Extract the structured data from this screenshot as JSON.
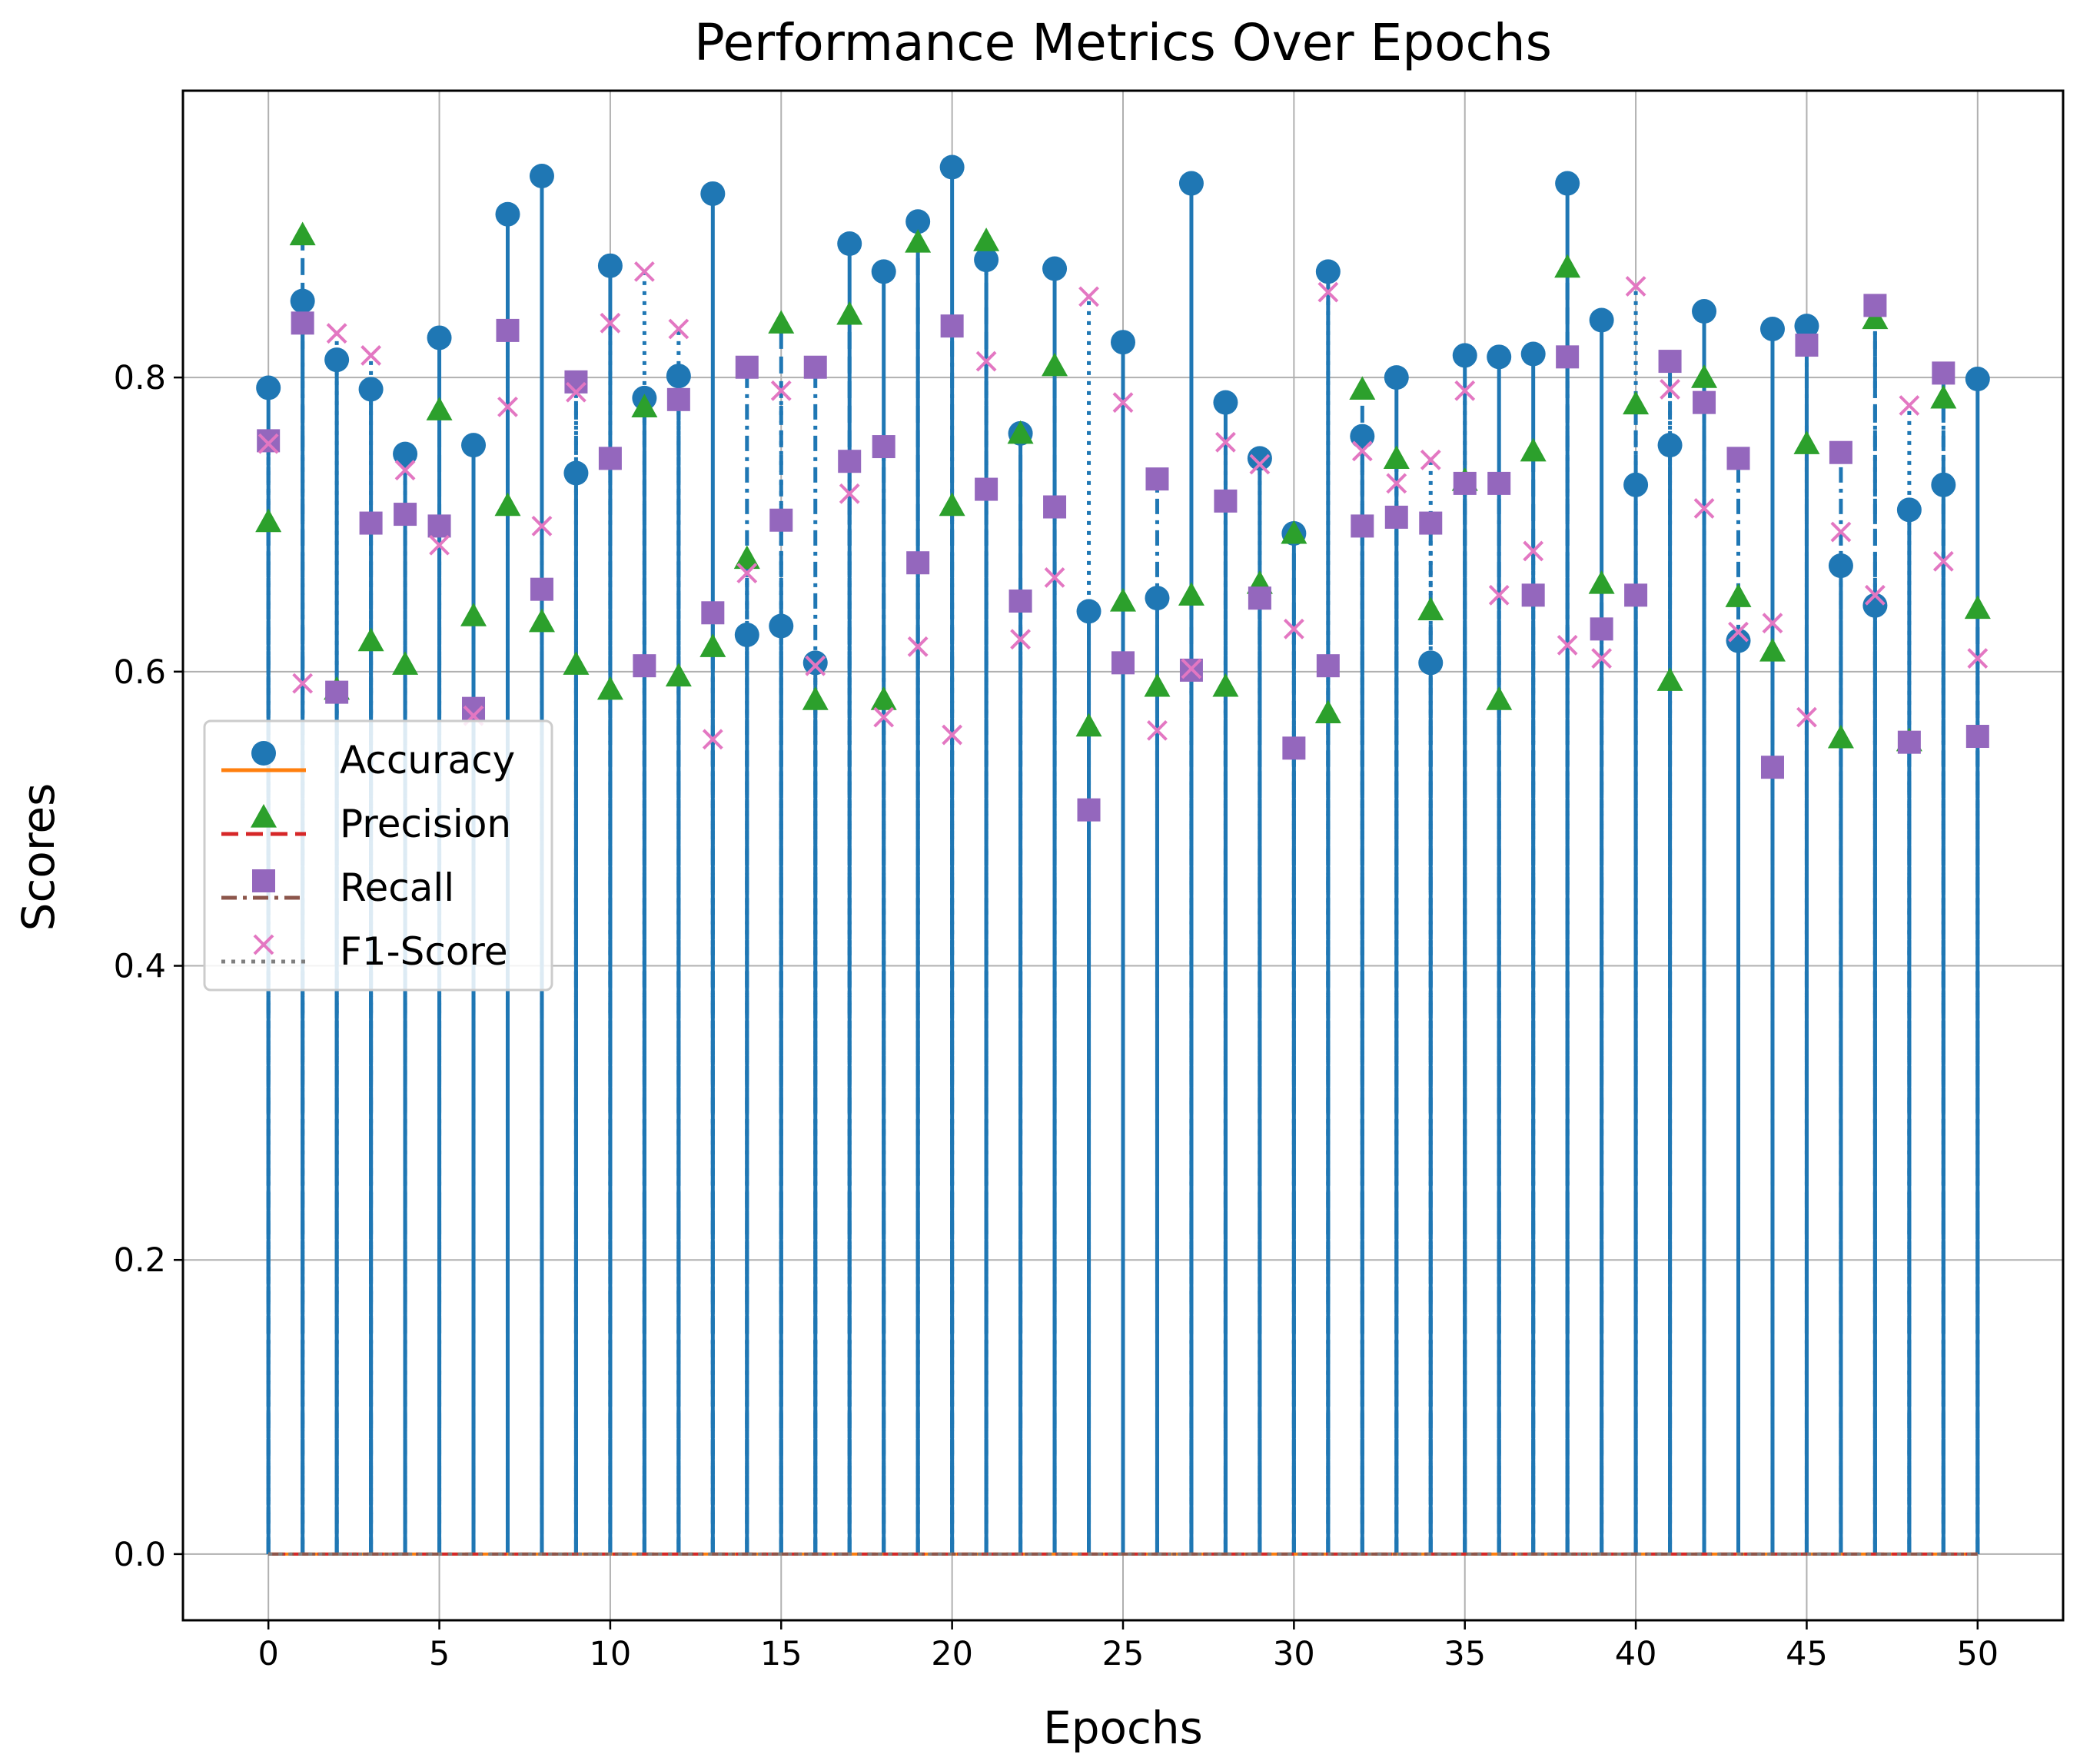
{
  "chart_data": {
    "type": "stem",
    "title": "Performance Metrics Over Epochs",
    "xlabel": "Epochs",
    "ylabel": "Scores",
    "xlim": [
      -2.5,
      52.5
    ],
    "ylim": [
      -0.045,
      0.995
    ],
    "xticks": [
      0,
      5,
      10,
      15,
      20,
      25,
      30,
      35,
      40,
      45,
      50
    ],
    "xtick_labels": [
      "0",
      "5",
      "10",
      "15",
      "20",
      "25",
      "30",
      "35",
      "40",
      "45",
      "50"
    ],
    "yticks": [
      0.0,
      0.2,
      0.4,
      0.6,
      0.8
    ],
    "ytick_labels": [
      "0.0",
      "0.2",
      "0.4",
      "0.6",
      "0.8"
    ],
    "grid": true,
    "legend_position": "center-left",
    "x": [
      0,
      1,
      2,
      3,
      4,
      5,
      6,
      7,
      8,
      9,
      10,
      11,
      12,
      13,
      14,
      15,
      16,
      17,
      18,
      19,
      20,
      21,
      22,
      23,
      24,
      25,
      26,
      27,
      28,
      29,
      30,
      31,
      32,
      33,
      34,
      35,
      36,
      37,
      38,
      39,
      40,
      41,
      42,
      43,
      44,
      45,
      46,
      47,
      48,
      49,
      50
    ],
    "series": [
      {
        "name": "Accuracy",
        "marker": "circle",
        "stem_style": "solid",
        "baseline_style": "solid",
        "marker_color": "#1f77b4",
        "stem_color": "#1f77b4",
        "baseline_color": "#ff7f0e",
        "values": [
          0.793,
          0.852,
          0.812,
          0.792,
          0.748,
          0.827,
          0.754,
          0.911,
          0.937,
          0.735,
          0.876,
          0.786,
          0.801,
          0.925,
          0.625,
          0.631,
          0.606,
          0.891,
          0.872,
          0.906,
          0.943,
          0.88,
          0.762,
          0.874,
          0.641,
          0.824,
          0.65,
          0.932,
          0.783,
          0.745,
          0.694,
          0.872,
          0.76,
          0.8,
          0.606,
          0.815,
          0.814,
          0.816,
          0.932,
          0.839,
          0.727,
          0.754,
          0.845,
          0.621,
          0.833,
          0.835,
          0.672,
          0.645,
          0.71,
          0.727,
          0.799
        ]
      },
      {
        "name": "Precision",
        "marker": "triangle",
        "stem_style": "dashed",
        "baseline_style": "dashed",
        "marker_color": "#2ca02c",
        "stem_color": "#1f77b4",
        "baseline_color": "#d62728",
        "values": [
          0.702,
          0.897,
          0.588,
          0.621,
          0.605,
          0.778,
          0.638,
          0.713,
          0.634,
          0.605,
          0.588,
          0.78,
          0.597,
          0.617,
          0.677,
          0.837,
          0.581,
          0.843,
          0.581,
          0.892,
          0.713,
          0.893,
          0.762,
          0.808,
          0.563,
          0.648,
          0.59,
          0.652,
          0.59,
          0.66,
          0.694,
          0.572,
          0.792,
          0.745,
          0.642,
          0.73,
          0.581,
          0.75,
          0.875,
          0.66,
          0.782,
          0.594,
          0.8,
          0.651,
          0.614,
          0.755,
          0.555,
          0.84,
          0.553,
          0.786,
          0.643
        ]
      },
      {
        "name": "Recall",
        "marker": "square",
        "stem_style": "dashdot",
        "baseline_style": "dashdot",
        "marker_color": "#9467bd",
        "stem_color": "#1f77b4",
        "baseline_color": "#8c564b",
        "values": [
          0.757,
          0.837,
          0.586,
          0.701,
          0.707,
          0.699,
          0.575,
          0.832,
          0.656,
          0.797,
          0.745,
          0.604,
          0.785,
          0.64,
          0.807,
          0.703,
          0.807,
          0.743,
          0.753,
          0.674,
          0.835,
          0.724,
          0.648,
          0.712,
          0.506,
          0.606,
          0.731,
          0.601,
          0.716,
          0.65,
          0.548,
          0.604,
          0.699,
          0.705,
          0.701,
          0.728,
          0.728,
          0.652,
          0.814,
          0.629,
          0.652,
          0.811,
          0.783,
          0.745,
          0.535,
          0.822,
          0.749,
          0.849,
          0.552,
          0.803,
          0.556
        ]
      },
      {
        "name": "F1-Score",
        "marker": "x",
        "stem_style": "dotted",
        "baseline_style": "dotted",
        "marker_color": "#e377c2",
        "stem_color": "#1f77b4",
        "baseline_color": "#7f7f7f",
        "values": [
          0.755,
          0.592,
          0.83,
          0.815,
          0.737,
          0.686,
          0.57,
          0.78,
          0.699,
          0.79,
          0.837,
          0.872,
          0.833,
          0.554,
          0.667,
          0.791,
          0.604,
          0.721,
          0.569,
          0.617,
          0.557,
          0.811,
          0.622,
          0.664,
          0.855,
          0.783,
          0.56,
          0.602,
          0.756,
          0.741,
          0.629,
          0.858,
          0.75,
          0.728,
          0.744,
          0.791,
          0.652,
          0.682,
          0.618,
          0.609,
          0.862,
          0.792,
          0.711,
          0.627,
          0.633,
          0.569,
          0.695,
          0.652,
          0.781,
          0.675,
          0.609
        ]
      }
    ]
  }
}
